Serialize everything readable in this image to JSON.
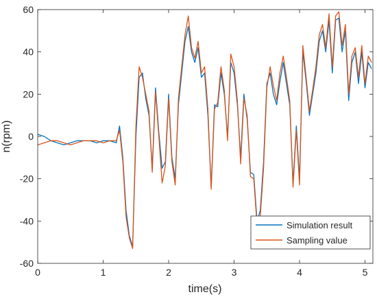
{
  "chart_data": {
    "type": "line",
    "xlabel": "time(s)",
    "ylabel": "n(rpm)",
    "xlim": [
      0,
      5.12
    ],
    "ylim": [
      -60,
      60
    ],
    "x_ticks": [
      0,
      1,
      2,
      3,
      4,
      5
    ],
    "y_ticks": [
      -60,
      -40,
      -20,
      0,
      20,
      40,
      60
    ],
    "x_tick_labels": [
      "0",
      "1",
      "2",
      "3",
      "4",
      "5"
    ],
    "y_tick_labels": [
      "-60",
      "-40",
      "-20",
      "0",
      "20",
      "40",
      "60"
    ],
    "grid": false,
    "legend_position": "bottom-right",
    "colors": {
      "simulation": "#0072BD",
      "sampling": "#D95319"
    },
    "series": [
      {
        "name": "Simulation result",
        "color": "#0072BD",
        "x": [
          0,
          0.1,
          0.2,
          0.3,
          0.4,
          0.5,
          0.6,
          0.7,
          0.8,
          0.9,
          1.0,
          1.1,
          1.2,
          1.25,
          1.3,
          1.35,
          1.4,
          1.45,
          1.5,
          1.55,
          1.6,
          1.65,
          1.7,
          1.75,
          1.8,
          1.85,
          1.9,
          1.95,
          2.0,
          2.05,
          2.1,
          2.15,
          2.2,
          2.25,
          2.3,
          2.35,
          2.4,
          2.45,
          2.5,
          2.55,
          2.6,
          2.65,
          2.7,
          2.75,
          2.8,
          2.85,
          2.9,
          2.95,
          3.0,
          3.05,
          3.1,
          3.15,
          3.2,
          3.25,
          3.3,
          3.35,
          3.4,
          3.45,
          3.5,
          3.55,
          3.6,
          3.65,
          3.7,
          3.75,
          3.8,
          3.85,
          3.9,
          3.95,
          4.0,
          4.05,
          4.1,
          4.15,
          4.2,
          4.25,
          4.3,
          4.35,
          4.4,
          4.45,
          4.5,
          4.55,
          4.6,
          4.65,
          4.7,
          4.75,
          4.8,
          4.85,
          4.9,
          4.95,
          5.0,
          5.05,
          5.1
        ],
        "values": [
          1,
          0,
          -2,
          -3,
          -4,
          -3,
          -2,
          -2,
          -2,
          -3,
          -2,
          -2,
          -3,
          5,
          -10,
          -35,
          -47,
          -52,
          0,
          28,
          30,
          18,
          10,
          -15,
          23,
          2,
          -15,
          -12,
          20,
          -10,
          -20,
          15,
          30,
          45,
          52,
          40,
          35,
          42,
          28,
          30,
          10,
          -24,
          15,
          14,
          30,
          20,
          0,
          35,
          30,
          15,
          -10,
          20,
          8,
          -17,
          -18,
          -40,
          -35,
          -12,
          25,
          30,
          20,
          15,
          26,
          35,
          25,
          15,
          -22,
          5,
          -20,
          40,
          26,
          10,
          20,
          30,
          45,
          50,
          40,
          55,
          30,
          55,
          56,
          40,
          50,
          17,
          35,
          40,
          25,
          40,
          23,
          35,
          32
        ]
      },
      {
        "name": "Sampling value",
        "color": "#D95319",
        "x": [
          0,
          0.1,
          0.2,
          0.3,
          0.4,
          0.5,
          0.6,
          0.7,
          0.8,
          0.9,
          1.0,
          1.1,
          1.2,
          1.25,
          1.3,
          1.35,
          1.4,
          1.45,
          1.5,
          1.55,
          1.6,
          1.65,
          1.7,
          1.75,
          1.8,
          1.85,
          1.9,
          1.95,
          2.0,
          2.05,
          2.1,
          2.15,
          2.2,
          2.25,
          2.3,
          2.35,
          2.4,
          2.45,
          2.5,
          2.55,
          2.6,
          2.65,
          2.7,
          2.75,
          2.8,
          2.85,
          2.9,
          2.95,
          3.0,
          3.05,
          3.1,
          3.15,
          3.2,
          3.25,
          3.3,
          3.35,
          3.4,
          3.45,
          3.5,
          3.55,
          3.6,
          3.65,
          3.7,
          3.75,
          3.8,
          3.85,
          3.9,
          3.95,
          4.0,
          4.05,
          4.1,
          4.15,
          4.2,
          4.25,
          4.3,
          4.35,
          4.4,
          4.45,
          4.5,
          4.55,
          4.6,
          4.65,
          4.7,
          4.75,
          4.8,
          4.85,
          4.9,
          4.95,
          5.0,
          5.05,
          5.1
        ],
        "values": [
          -4,
          -3,
          -2,
          -2,
          -3,
          -4,
          -3,
          -2,
          -2,
          -2,
          -3,
          -2,
          -2,
          3,
          -12,
          -38,
          -48,
          -53,
          5,
          33,
          28,
          20,
          12,
          -17,
          21,
          0,
          -22,
          -14,
          18,
          -12,
          -23,
          18,
          33,
          48,
          57,
          42,
          37,
          45,
          30,
          33,
          13,
          -25,
          13,
          16,
          33,
          22,
          -2,
          39,
          33,
          17,
          -13,
          18,
          10,
          -19,
          -20,
          -42,
          -38,
          -15,
          23,
          33,
          24,
          17,
          30,
          38,
          28,
          17,
          -24,
          3,
          -23,
          43,
          28,
          12,
          22,
          33,
          48,
          53,
          42,
          58,
          33,
          57,
          59,
          43,
          53,
          20,
          38,
          42,
          28,
          43,
          25,
          38,
          35
        ]
      }
    ]
  }
}
